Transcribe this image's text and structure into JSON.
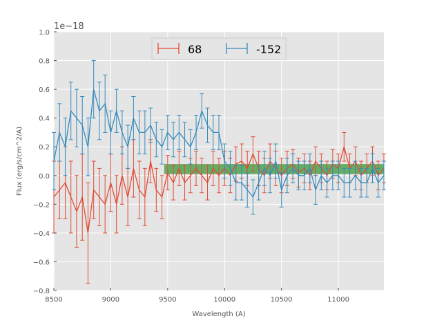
{
  "chart_data": {
    "type": "line",
    "title": "",
    "xlabel": "Wavelength (A)",
    "ylabel": "Flux (erg/s/cm^2/A)",
    "xlim": [
      8500,
      11400
    ],
    "ylim": [
      -0.8,
      1.0
    ],
    "y_scale_label": "1e−18",
    "x_ticks": [
      8500,
      9000,
      9500,
      10000,
      10500,
      11000
    ],
    "x_tick_labels": [
      "8500",
      "9000",
      "9500",
      "10000",
      "10500",
      "11000"
    ],
    "y_ticks": [
      -0.8,
      -0.6,
      -0.4,
      -0.2,
      0.0,
      0.2,
      0.4,
      0.6,
      0.8,
      1.0
    ],
    "y_tick_labels": [
      "−0.8",
      "−0.6",
      "−0.4",
      "−0.2",
      "0.0",
      "0.2",
      "0.4",
      "0.6",
      "0.8",
      "1.0"
    ],
    "grid": true,
    "legend_position": "top-center",
    "band": {
      "x_start": 9470,
      "x_end": 11400,
      "y_low": 0.01,
      "y_high": 0.08,
      "color": "#3a9a3a"
    },
    "series": [
      {
        "name": "68",
        "color": "#e24a33",
        "x": [
          8500,
          8550,
          8600,
          8650,
          8700,
          8750,
          8800,
          8850,
          8900,
          8950,
          9000,
          9050,
          9100,
          9150,
          9200,
          9250,
          9300,
          9350,
          9400,
          9450,
          9500,
          9550,
          9600,
          9650,
          9700,
          9750,
          9800,
          9850,
          9900,
          9950,
          10000,
          10050,
          10100,
          10150,
          10200,
          10250,
          10300,
          10350,
          10400,
          10450,
          10500,
          10550,
          10600,
          10650,
          10700,
          10750,
          10800,
          10850,
          10900,
          10950,
          11000,
          11050,
          11100,
          11150,
          11200,
          11250,
          11300,
          11350,
          11400
        ],
        "y": [
          -0.15,
          -0.1,
          -0.05,
          -0.15,
          -0.25,
          -0.15,
          -0.4,
          -0.1,
          -0.15,
          -0.2,
          -0.05,
          -0.2,
          0.0,
          -0.15,
          0.05,
          -0.1,
          -0.15,
          0.1,
          -0.1,
          -0.15,
          0.02,
          -0.05,
          0.05,
          -0.05,
          0.0,
          0.05,
          0.0,
          -0.05,
          0.05,
          0.0,
          0.05,
          0.0,
          0.08,
          0.1,
          0.05,
          0.15,
          0.05,
          0.0,
          0.1,
          0.05,
          0.0,
          0.05,
          0.08,
          0.02,
          0.05,
          0.0,
          0.1,
          0.05,
          0.0,
          0.08,
          0.05,
          0.2,
          0.05,
          0.1,
          0.0,
          0.05,
          0.1,
          0.0,
          0.05
        ],
        "err": [
          0.25,
          0.2,
          0.25,
          0.25,
          0.25,
          0.3,
          0.35,
          0.2,
          0.2,
          0.2,
          0.2,
          0.2,
          0.2,
          0.2,
          0.2,
          0.2,
          0.2,
          0.15,
          0.15,
          0.15,
          0.12,
          0.12,
          0.12,
          0.12,
          0.12,
          0.12,
          0.12,
          0.12,
          0.12,
          0.12,
          0.12,
          0.12,
          0.12,
          0.12,
          0.12,
          0.12,
          0.12,
          0.12,
          0.12,
          0.12,
          0.12,
          0.12,
          0.1,
          0.1,
          0.1,
          0.1,
          0.1,
          0.1,
          0.1,
          0.1,
          0.1,
          0.1,
          0.1,
          0.1,
          0.1,
          0.1,
          0.1,
          0.1,
          0.1
        ]
      },
      {
        "name": "-152",
        "color": "#348abd",
        "x": [
          8500,
          8550,
          8600,
          8650,
          8700,
          8750,
          8800,
          8850,
          8900,
          8950,
          9000,
          9050,
          9100,
          9150,
          9200,
          9250,
          9300,
          9350,
          9400,
          9450,
          9500,
          9550,
          9600,
          9650,
          9700,
          9750,
          9800,
          9850,
          9900,
          9950,
          10000,
          10050,
          10100,
          10150,
          10200,
          10250,
          10300,
          10350,
          10400,
          10450,
          10500,
          10550,
          10600,
          10650,
          10700,
          10750,
          10800,
          10850,
          10900,
          10950,
          11000,
          11050,
          11100,
          11150,
          11200,
          11250,
          11300,
          11350,
          11400
        ],
        "y": [
          0.1,
          0.3,
          0.2,
          0.45,
          0.4,
          0.35,
          0.2,
          0.6,
          0.45,
          0.5,
          0.3,
          0.45,
          0.3,
          0.2,
          0.4,
          0.3,
          0.3,
          0.35,
          0.25,
          0.2,
          0.3,
          0.25,
          0.3,
          0.25,
          0.2,
          0.3,
          0.45,
          0.35,
          0.3,
          0.3,
          0.1,
          0.05,
          -0.05,
          -0.05,
          -0.1,
          -0.15,
          -0.05,
          0.05,
          0.0,
          0.1,
          -0.1,
          0.0,
          0.05,
          0.0,
          0.0,
          0.05,
          -0.1,
          0.0,
          -0.05,
          0.0,
          0.0,
          -0.05,
          -0.05,
          0.0,
          -0.05,
          -0.05,
          0.05,
          -0.05,
          0.0
        ],
        "err": [
          0.2,
          0.2,
          0.2,
          0.2,
          0.2,
          0.2,
          0.2,
          0.2,
          0.2,
          0.2,
          0.15,
          0.15,
          0.15,
          0.15,
          0.15,
          0.15,
          0.15,
          0.12,
          0.12,
          0.12,
          0.12,
          0.12,
          0.12,
          0.12,
          0.12,
          0.12,
          0.12,
          0.12,
          0.12,
          0.12,
          0.12,
          0.12,
          0.12,
          0.12,
          0.12,
          0.12,
          0.12,
          0.12,
          0.12,
          0.12,
          0.12,
          0.12,
          0.1,
          0.1,
          0.1,
          0.1,
          0.1,
          0.1,
          0.1,
          0.1,
          0.1,
          0.1,
          0.1,
          0.1,
          0.1,
          0.1,
          0.1,
          0.1,
          0.1
        ]
      }
    ]
  }
}
